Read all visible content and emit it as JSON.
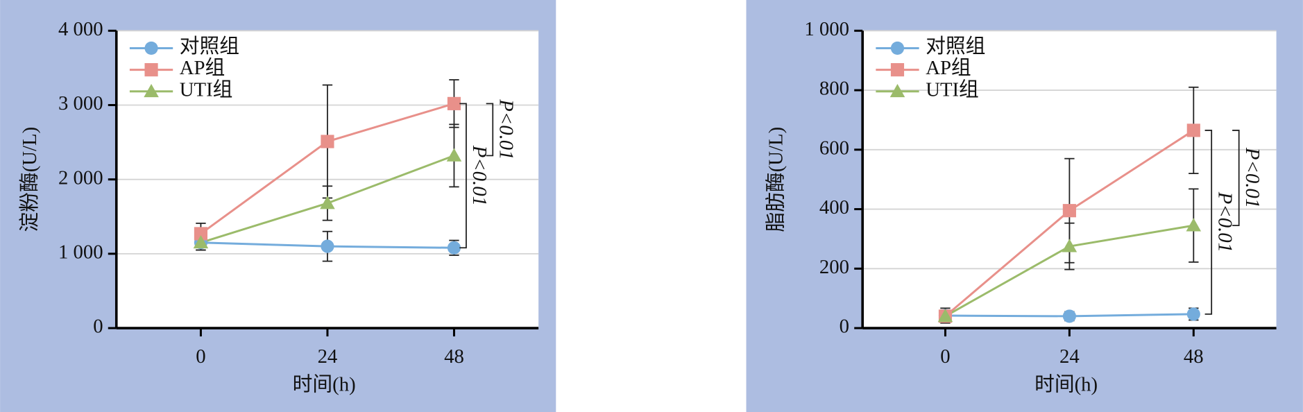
{
  "chart_data": [
    {
      "type": "line",
      "ylabel": "淀粉酶(U/L)",
      "xlabel": "时间(h)",
      "x": [
        0,
        24,
        48
      ],
      "xlim": [
        -16,
        64
      ],
      "xticks": [
        0,
        24,
        48
      ],
      "ylim": [
        0,
        4000
      ],
      "yticks": [
        0,
        {
          "value": 1000,
          "label": "1 000"
        },
        {
          "value": 2000,
          "label": "2 000"
        },
        {
          "value": 3000,
          "label": "3 000"
        },
        {
          "value": 4000,
          "label": "4 000"
        }
      ],
      "grid": true,
      "legend": "upper left",
      "series": [
        {
          "name": "对照组",
          "color": "#74acdc",
          "marker": "circle",
          "values": [
            1150,
            1100,
            1080
          ],
          "errors": [
            100,
            200,
            100
          ]
        },
        {
          "name": "AP组",
          "color": "#e8908a",
          "marker": "square",
          "values": [
            1270,
            2510,
            3020
          ],
          "errors": [
            140,
            760,
            320
          ]
        },
        {
          "name": "UTI组",
          "color": "#9bbb6a",
          "marker": "triangle",
          "values": [
            1150,
            1680,
            2320
          ],
          "errors": [
            100,
            230,
            420
          ]
        }
      ],
      "annotations": [
        "P<0.01",
        "P<0.01"
      ]
    },
    {
      "type": "line",
      "ylabel": "脂肪酶(U/L)",
      "xlabel": "时间(h)",
      "x": [
        0,
        24,
        48
      ],
      "xlim": [
        -16,
        64
      ],
      "xticks": [
        0,
        24,
        48
      ],
      "ylim": [
        0,
        1000
      ],
      "yticks": [
        0,
        200,
        400,
        600,
        800,
        {
          "value": 1000,
          "label": "1 000"
        }
      ],
      "grid": true,
      "legend": "upper left",
      "series": [
        {
          "name": "对照组",
          "color": "#74acdc",
          "marker": "circle",
          "values": [
            42,
            40,
            47
          ],
          "errors": [
            25,
            15,
            20
          ]
        },
        {
          "name": "AP组",
          "color": "#e8908a",
          "marker": "square",
          "values": [
            40,
            395,
            665
          ],
          "errors": [
            20,
            175,
            145
          ]
        },
        {
          "name": "UTI组",
          "color": "#9bbb6a",
          "marker": "triangle",
          "values": [
            40,
            275,
            345
          ],
          "errors": [
            20,
            78,
            123
          ]
        }
      ],
      "annotations": [
        "P<0.01",
        "P<0.01"
      ]
    }
  ]
}
